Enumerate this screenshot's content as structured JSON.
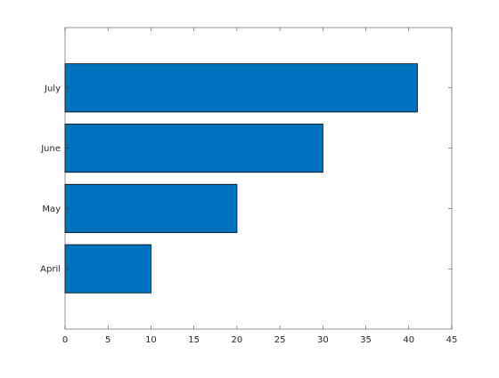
{
  "chart_data": {
    "type": "bar",
    "orientation": "horizontal",
    "categories": [
      "April",
      "May",
      "June",
      "July"
    ],
    "values": [
      10,
      20,
      30,
      41
    ],
    "title": "",
    "xlabel": "",
    "ylabel": "",
    "xlim": [
      0,
      45
    ],
    "xticks": [
      0,
      5,
      10,
      15,
      20,
      25,
      30,
      35,
      40,
      45
    ],
    "grid": false,
    "colors": {
      "bar": "#0072BD",
      "edge": "#000000"
    }
  }
}
